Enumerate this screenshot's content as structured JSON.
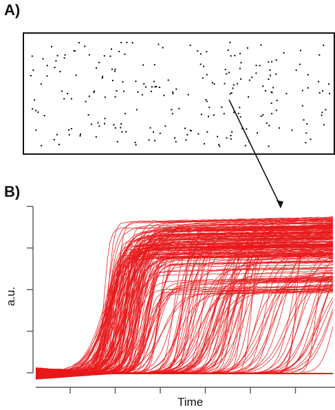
{
  "panel_a": {
    "label": "A)"
  },
  "panel_b": {
    "label": "B)"
  },
  "chart_data": [
    {
      "type": "scatter",
      "panel": "A)",
      "description_free": true,
      "marker_color": "#000000",
      "n_points": 230
    },
    {
      "type": "line",
      "panel": "B)",
      "xlabel": "Time",
      "ylabel": "a.u.",
      "x_ticks": 6,
      "y_ticks": 5,
      "series_color": "#e8191b",
      "n_traces": 260,
      "baseline_level": 0.0,
      "plateau_level_max": 1.0,
      "grid": false,
      "legend": false
    }
  ]
}
